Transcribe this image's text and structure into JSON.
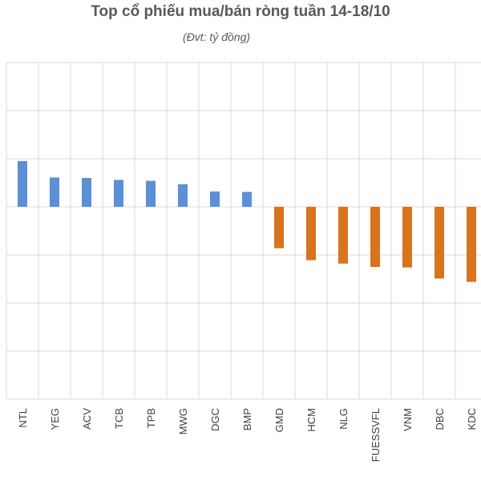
{
  "chart_data": {
    "type": "bar",
    "title": "Top cổ phiếu mua/bán ròng tuần 14-18/10",
    "subtitle": "(Đvt: tỷ đồng)",
    "xlabel": "",
    "ylabel": "",
    "grid": true,
    "ylim": [
      -400,
      300
    ],
    "categories": [
      "NTL",
      "YEG",
      "ACV",
      "TCB",
      "TPB",
      "MWG",
      "DGC",
      "BMP",
      "GMD",
      "HCM",
      "NLG",
      "FUESSVFL",
      "VNM",
      "DBC",
      "KDC"
    ],
    "values": [
      95,
      61,
      60,
      56,
      54,
      47,
      32,
      31,
      -86,
      -111,
      -118,
      -125,
      -126,
      -149,
      -156
    ],
    "colors": {
      "positive": "#5B8FD6",
      "negative": "#D9731E"
    }
  }
}
